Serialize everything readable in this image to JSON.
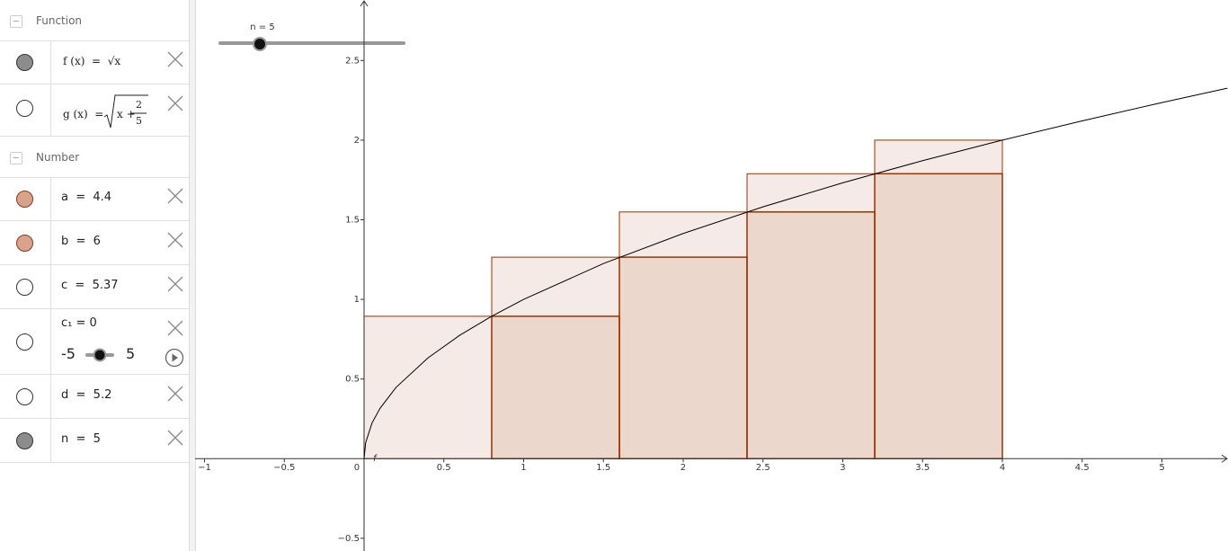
{
  "algebra": {
    "sections": [
      {
        "title": "Function",
        "items": [
          {
            "label": "f (x)  =  √x",
            "color": "#8c8c8c"
          },
          {
            "label": "g (x)  =",
            "radicand": "x +",
            "numerator": "2",
            "denominator": "5",
            "color": "#ffffff"
          }
        ]
      },
      {
        "title": "Number",
        "items": [
          {
            "label": "a  =  4.4",
            "color": "#d9a28a"
          },
          {
            "label": "b  =  6",
            "color": "#d9a28a"
          },
          {
            "label": "c  =  5.37",
            "color": "#ffffff"
          },
          {
            "label": "c₁ = 0",
            "color": "#ffffff",
            "slider": {
              "value": 0,
              "min": -5,
              "max": 5
            }
          },
          {
            "label": "d  =  5.2",
            "color": "#ffffff"
          },
          {
            "label": "n  =  5",
            "color": "#8c8c8c"
          }
        ]
      }
    ]
  },
  "graph": {
    "slider_label": "n = 5",
    "function_label": "f",
    "xlim": [
      -1.059,
      5.414
    ],
    "ylim": [
      -0.58,
      2.88
    ],
    "xticks": [
      {
        "value": -1,
        "label": "−1"
      },
      {
        "value": -0.5,
        "label": "−0.5"
      },
      0,
      0.5,
      1,
      1.5,
      2,
      2.5,
      3,
      3.5,
      4,
      4.5,
      5
    ],
    "yticks": [
      {
        "value": -0.5,
        "label": "−0.5"
      },
      0.5,
      1,
      1.5,
      2,
      2.5
    ],
    "curve": {
      "x": [
        0,
        0.01,
        0.05,
        0.1,
        0.2,
        0.4,
        0.6,
        0.8,
        1,
        1.5,
        2,
        2.5,
        3,
        3.5,
        4,
        4.5,
        5,
        5.41
      ],
      "y": [
        0,
        0.1,
        0.224,
        0.316,
        0.447,
        0.632,
        0.775,
        0.894,
        1,
        1.225,
        1.414,
        1.581,
        1.732,
        1.871,
        2,
        2.121,
        2.236,
        2.326
      ]
    },
    "edges": [
      0,
      0.8,
      1.6,
      2.4,
      3.2,
      4
    ],
    "upper_sum": [
      0.894,
      1.265,
      1.549,
      1.789,
      2
    ],
    "lower_sum": [
      0,
      0.894,
      1.265,
      1.549,
      1.789
    ],
    "sum_color": "#993300"
  }
}
